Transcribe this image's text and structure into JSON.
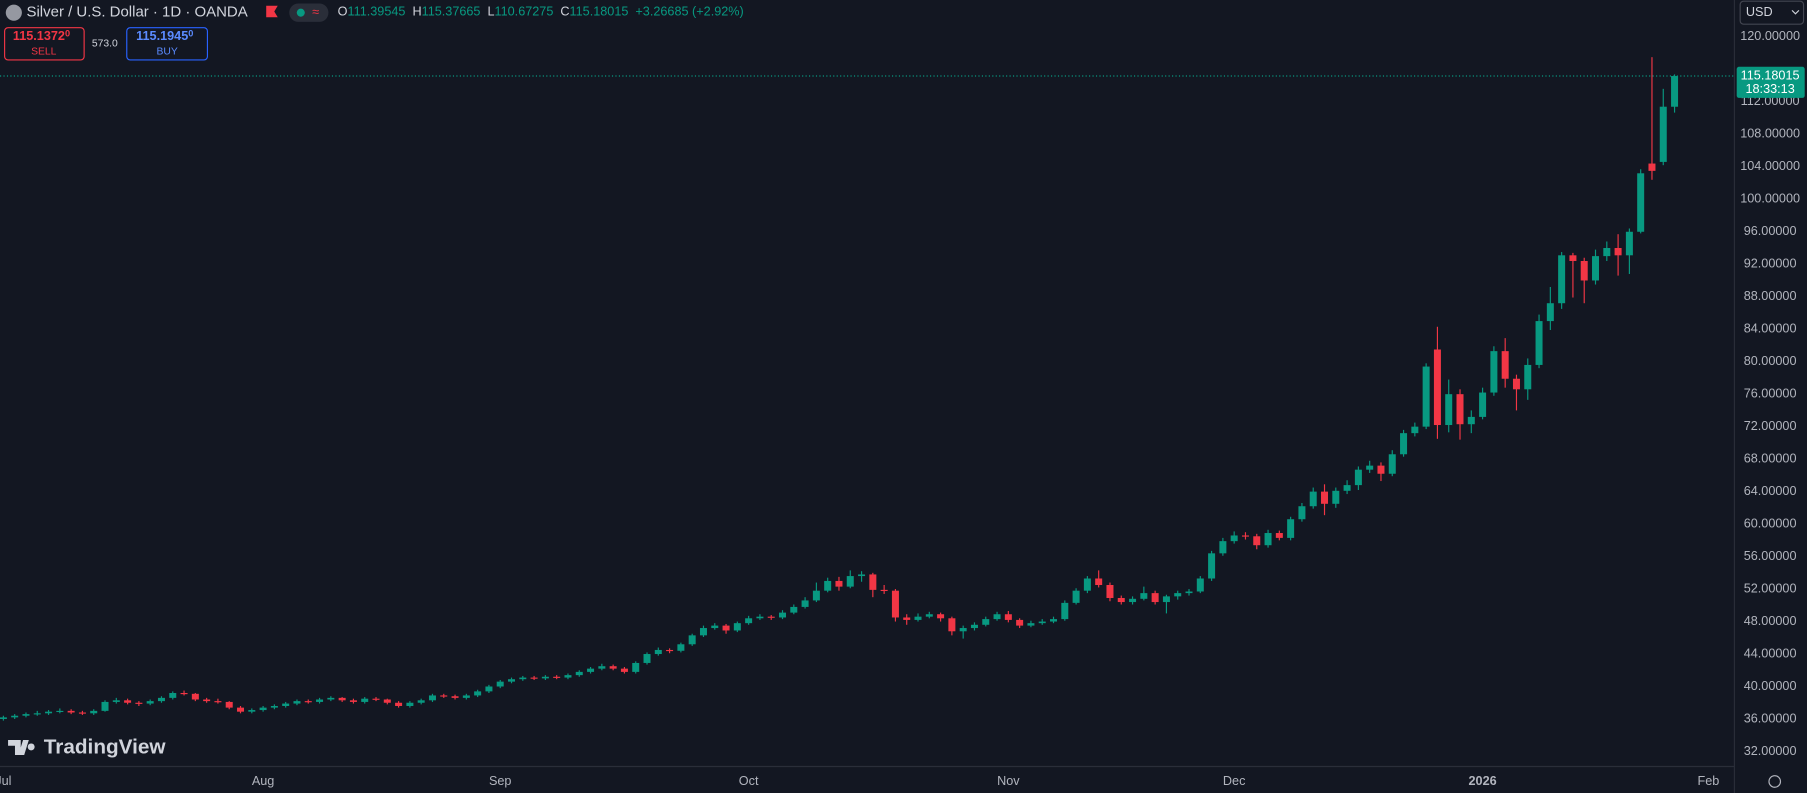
{
  "header": {
    "title": "Silver / U.S. Dollar · 1D · OANDA",
    "o": "O",
    "h": "H",
    "l": "L",
    "c": "C",
    "change": "+3.26685 (+2.92%)"
  },
  "trade": {
    "sell_price": "115.1372",
    "sell_pip": "0",
    "sell_label": "SELL",
    "spread": "573.0",
    "buy_price": "115.1945",
    "buy_pip": "0",
    "buy_label": "BUY"
  },
  "currency": "USD",
  "countdown": "18:33:13",
  "brand": "TradingView",
  "chart_data": {
    "type": "candlestick",
    "up_color": "#089981",
    "down_color": "#f23645",
    "grid": false,
    "xlim": [
      -0.3,
      153.3
    ],
    "ylim": [
      30.15,
      124.54
    ],
    "xticks": [
      {
        "value": 0,
        "label": "Jul"
      },
      {
        "value": 23,
        "label": "Aug"
      },
      {
        "value": 44,
        "label": "Sep"
      },
      {
        "value": 66,
        "label": "Oct"
      },
      {
        "value": 89,
        "label": "Nov"
      },
      {
        "value": 109,
        "label": "Dec"
      },
      {
        "value": 131,
        "label": "2026"
      },
      {
        "value": 151,
        "label": "Feb"
      }
    ],
    "yticks": [
      {
        "value": 32,
        "label": "32.00000"
      },
      {
        "value": 36,
        "label": "36.00000"
      },
      {
        "value": 40,
        "label": "40.00000"
      },
      {
        "value": 44,
        "label": "44.00000"
      },
      {
        "value": 48,
        "label": "48.00000"
      },
      {
        "value": 52,
        "label": "52.00000"
      },
      {
        "value": 56,
        "label": "56.00000"
      },
      {
        "value": 60,
        "label": "60.00000"
      },
      {
        "value": 64,
        "label": "64.00000"
      },
      {
        "value": 68,
        "label": "68.00000"
      },
      {
        "value": 72,
        "label": "72.00000"
      },
      {
        "value": 76,
        "label": "76.00000"
      },
      {
        "value": 80,
        "label": "80.00000"
      },
      {
        "value": 84,
        "label": "84.00000"
      },
      {
        "value": 88,
        "label": "88.00000"
      },
      {
        "value": 92,
        "label": "92.00000"
      },
      {
        "value": 96,
        "label": "96.00000"
      },
      {
        "value": 100,
        "label": "100.00000"
      },
      {
        "value": 104,
        "label": "104.00000"
      },
      {
        "value": 108,
        "label": "108.00000"
      },
      {
        "value": 112,
        "label": "112.00000"
      },
      {
        "value": 120,
        "label": "120.00000"
      }
    ],
    "ohlc": [
      [
        36.0,
        36.4,
        35.8,
        36.2
      ],
      [
        36.2,
        36.6,
        36.0,
        36.4
      ],
      [
        36.4,
        36.8,
        36.2,
        36.6
      ],
      [
        36.6,
        37.0,
        36.4,
        36.7
      ],
      [
        36.7,
        37.1,
        36.5,
        36.9
      ],
      [
        36.9,
        37.3,
        36.7,
        37.0
      ],
      [
        37.0,
        37.2,
        36.6,
        36.8
      ],
      [
        36.8,
        37.0,
        36.5,
        36.7
      ],
      [
        36.7,
        37.2,
        36.5,
        37.0
      ],
      [
        37.0,
        38.3,
        36.9,
        38.1
      ],
      [
        38.1,
        38.6,
        37.9,
        38.3
      ],
      [
        38.3,
        38.5,
        37.8,
        38.0
      ],
      [
        38.0,
        38.2,
        37.6,
        37.9
      ],
      [
        37.9,
        38.4,
        37.7,
        38.2
      ],
      [
        38.2,
        38.8,
        38.0,
        38.6
      ],
      [
        38.6,
        39.4,
        38.4,
        39.2
      ],
      [
        39.2,
        39.5,
        38.9,
        39.1
      ],
      [
        39.1,
        39.2,
        38.2,
        38.4
      ],
      [
        38.4,
        38.6,
        38.0,
        38.2
      ],
      [
        38.2,
        38.5,
        37.9,
        38.1
      ],
      [
        38.1,
        38.2,
        37.2,
        37.4
      ],
      [
        37.4,
        37.6,
        36.7,
        36.9
      ],
      [
        36.9,
        37.3,
        36.7,
        37.1
      ],
      [
        37.1,
        37.6,
        36.9,
        37.4
      ],
      [
        37.4,
        37.8,
        37.2,
        37.6
      ],
      [
        37.6,
        38.1,
        37.4,
        37.9
      ],
      [
        37.9,
        38.4,
        37.7,
        38.2
      ],
      [
        38.2,
        38.4,
        37.9,
        38.1
      ],
      [
        38.1,
        38.6,
        37.9,
        38.4
      ],
      [
        38.4,
        38.8,
        38.2,
        38.6
      ],
      [
        38.6,
        38.7,
        38.1,
        38.3
      ],
      [
        38.3,
        38.5,
        37.9,
        38.1
      ],
      [
        38.1,
        38.7,
        37.9,
        38.5
      ],
      [
        38.5,
        38.7,
        38.2,
        38.4
      ],
      [
        38.4,
        38.5,
        37.8,
        38.0
      ],
      [
        38.0,
        38.2,
        37.4,
        37.6
      ],
      [
        37.6,
        38.2,
        37.4,
        38.0
      ],
      [
        38.0,
        38.5,
        37.8,
        38.3
      ],
      [
        38.3,
        39.1,
        38.1,
        38.9
      ],
      [
        38.9,
        39.1,
        38.6,
        38.8
      ],
      [
        38.8,
        39.0,
        38.4,
        38.6
      ],
      [
        38.6,
        39.1,
        38.4,
        38.9
      ],
      [
        38.9,
        39.6,
        38.7,
        39.4
      ],
      [
        39.4,
        40.2,
        39.2,
        40.0
      ],
      [
        40.0,
        40.8,
        39.8,
        40.6
      ],
      [
        40.6,
        41.1,
        40.4,
        40.9
      ],
      [
        40.9,
        41.3,
        40.7,
        41.1
      ],
      [
        41.1,
        41.3,
        40.8,
        41.0
      ],
      [
        41.0,
        41.4,
        40.8,
        41.2
      ],
      [
        41.2,
        41.4,
        40.9,
        41.1
      ],
      [
        41.1,
        41.6,
        40.9,
        41.4
      ],
      [
        41.4,
        42.0,
        41.2,
        41.8
      ],
      [
        41.8,
        42.4,
        41.6,
        42.2
      ],
      [
        42.2,
        42.8,
        42.0,
        42.5
      ],
      [
        42.5,
        42.7,
        42.0,
        42.2
      ],
      [
        42.2,
        42.4,
        41.6,
        41.8
      ],
      [
        41.8,
        43.1,
        41.6,
        42.9
      ],
      [
        42.9,
        44.2,
        42.7,
        44.0
      ],
      [
        44.0,
        44.8,
        43.8,
        44.5
      ],
      [
        44.5,
        44.7,
        44.1,
        44.4
      ],
      [
        44.4,
        45.4,
        44.2,
        45.2
      ],
      [
        45.2,
        46.5,
        45.0,
        46.3
      ],
      [
        46.3,
        47.5,
        46.1,
        47.2
      ],
      [
        47.2,
        47.8,
        47.0,
        47.5
      ],
      [
        47.5,
        47.7,
        46.5,
        46.9
      ],
      [
        46.9,
        48.0,
        46.7,
        47.8
      ],
      [
        47.8,
        48.7,
        47.6,
        48.4
      ],
      [
        48.4,
        48.9,
        48.2,
        48.6
      ],
      [
        48.6,
        48.8,
        48.2,
        48.5
      ],
      [
        48.5,
        49.4,
        48.3,
        49.1
      ],
      [
        49.1,
        50.1,
        48.9,
        49.8
      ],
      [
        49.8,
        51.0,
        49.6,
        50.6
      ],
      [
        50.6,
        52.8,
        50.4,
        51.8
      ],
      [
        51.8,
        53.4,
        51.6,
        53.0
      ],
      [
        53.0,
        53.5,
        51.8,
        52.3
      ],
      [
        52.3,
        54.3,
        52.1,
        53.6
      ],
      [
        53.6,
        54.2,
        52.9,
        53.8
      ],
      [
        53.8,
        54.0,
        51.0,
        51.9
      ],
      [
        51.9,
        52.5,
        51.4,
        51.8
      ],
      [
        51.8,
        52.0,
        48.0,
        48.5
      ],
      [
        48.5,
        48.9,
        47.6,
        48.2
      ],
      [
        48.2,
        49.0,
        48.0,
        48.6
      ],
      [
        48.6,
        49.2,
        48.4,
        48.9
      ],
      [
        48.9,
        49.1,
        48.0,
        48.4
      ],
      [
        48.4,
        48.6,
        46.3,
        46.8
      ],
      [
        46.8,
        47.5,
        45.9,
        47.2
      ],
      [
        47.2,
        47.9,
        46.9,
        47.6
      ],
      [
        47.6,
        48.6,
        47.4,
        48.3
      ],
      [
        48.3,
        49.2,
        48.1,
        48.9
      ],
      [
        48.9,
        49.3,
        47.9,
        48.2
      ],
      [
        48.2,
        48.4,
        47.2,
        47.5
      ],
      [
        47.5,
        48.1,
        47.3,
        47.8
      ],
      [
        47.8,
        48.3,
        47.6,
        48.0
      ],
      [
        48.0,
        48.6,
        47.8,
        48.3
      ],
      [
        48.3,
        50.6,
        48.1,
        50.3
      ],
      [
        50.3,
        52.1,
        50.1,
        51.8
      ],
      [
        51.8,
        53.6,
        51.5,
        53.3
      ],
      [
        53.3,
        54.3,
        52.2,
        52.5
      ],
      [
        52.5,
        52.8,
        50.5,
        50.9
      ],
      [
        50.9,
        51.2,
        50.1,
        50.4
      ],
      [
        50.4,
        51.1,
        50.1,
        50.8
      ],
      [
        50.8,
        52.3,
        50.6,
        51.5
      ],
      [
        51.5,
        51.8,
        50.1,
        50.4
      ],
      [
        50.4,
        51.3,
        49.0,
        51.1
      ],
      [
        51.1,
        51.8,
        50.7,
        51.5
      ],
      [
        51.5,
        52.0,
        51.2,
        51.7
      ],
      [
        51.7,
        53.6,
        51.5,
        53.3
      ],
      [
        53.3,
        56.7,
        53.0,
        56.4
      ],
      [
        56.4,
        58.3,
        56.1,
        57.9
      ],
      [
        57.9,
        59.1,
        57.6,
        58.6
      ],
      [
        58.6,
        59.0,
        58.1,
        58.5
      ],
      [
        58.5,
        58.8,
        56.9,
        57.4
      ],
      [
        57.4,
        59.3,
        57.1,
        58.9
      ],
      [
        58.9,
        59.2,
        58.0,
        58.3
      ],
      [
        58.3,
        60.9,
        58.0,
        60.6
      ],
      [
        60.6,
        62.6,
        60.3,
        62.2
      ],
      [
        62.2,
        64.5,
        61.9,
        64.0
      ],
      [
        64.0,
        64.9,
        61.1,
        62.5
      ],
      [
        62.5,
        64.5,
        62.0,
        64.1
      ],
      [
        64.1,
        65.4,
        63.7,
        64.8
      ],
      [
        64.8,
        67.1,
        64.2,
        66.7
      ],
      [
        66.7,
        67.8,
        66.3,
        67.2
      ],
      [
        67.2,
        67.6,
        65.3,
        66.2
      ],
      [
        66.2,
        69.1,
        65.9,
        68.6
      ],
      [
        68.6,
        71.6,
        68.3,
        71.2
      ],
      [
        71.2,
        72.5,
        70.8,
        72.0
      ],
      [
        72.0,
        79.8,
        71.7,
        79.4
      ],
      [
        81.5,
        84.3,
        70.5,
        72.2
      ],
      [
        72.2,
        77.8,
        71.3,
        76.0
      ],
      [
        76.0,
        76.6,
        70.4,
        72.3
      ],
      [
        72.3,
        74.0,
        71.2,
        73.2
      ],
      [
        73.2,
        76.8,
        72.9,
        76.2
      ],
      [
        76.2,
        81.9,
        75.8,
        81.3
      ],
      [
        81.3,
        82.9,
        76.8,
        77.9
      ],
      [
        77.9,
        78.4,
        74.0,
        76.6
      ],
      [
        76.6,
        80.4,
        75.3,
        79.6
      ],
      [
        79.6,
        85.8,
        79.2,
        85.0
      ],
      [
        85.0,
        89.2,
        83.9,
        87.2
      ],
      [
        87.2,
        93.5,
        86.5,
        93.1
      ],
      [
        93.1,
        93.4,
        87.9,
        92.4
      ],
      [
        92.4,
        92.8,
        87.2,
        90.0
      ],
      [
        90.0,
        93.8,
        89.5,
        93.0
      ],
      [
        93.0,
        94.8,
        92.4,
        94.0
      ],
      [
        94.0,
        95.7,
        90.6,
        93.1
      ],
      [
        93.1,
        96.4,
        90.8,
        96.0
      ],
      [
        96.0,
        103.7,
        95.8,
        103.2
      ],
      [
        104.4,
        117.5,
        102.4,
        103.5
      ],
      [
        104.6,
        113.6,
        104.2,
        111.4
      ],
      [
        111.39545,
        115.37665,
        110.67275,
        115.18015
      ]
    ]
  }
}
